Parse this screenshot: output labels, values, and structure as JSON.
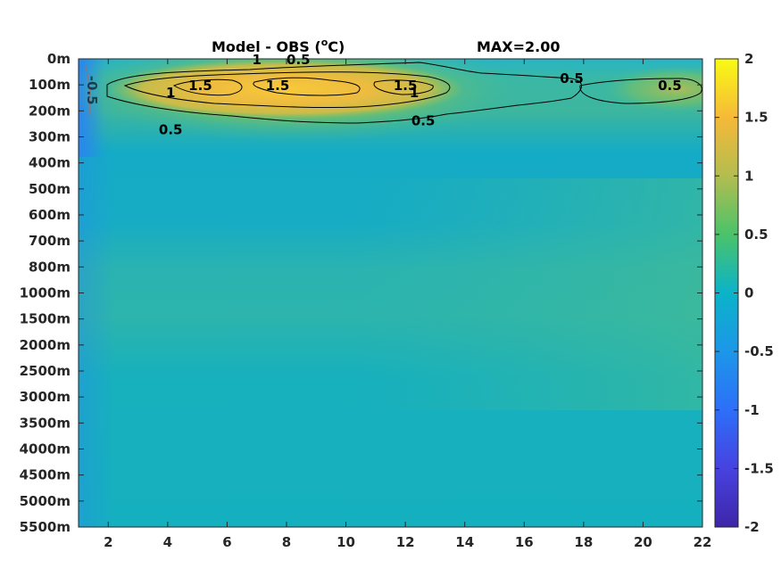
{
  "chart_data": {
    "type": "heatmap",
    "title": "Model - OBS (",
    "title_sup": "o",
    "title_unit": "C)",
    "subtitle": "MAX=2.00",
    "x_ticks": [
      "2",
      "4",
      "6",
      "8",
      "10",
      "12",
      "14",
      "16",
      "18",
      "20",
      "22"
    ],
    "x_tick_values": [
      2,
      4,
      6,
      8,
      10,
      12,
      14,
      16,
      18,
      20,
      22
    ],
    "xlim": [
      1,
      22
    ],
    "y_ticks": [
      "0m",
      "100m",
      "200m",
      "300m",
      "400m",
      "500m",
      "600m",
      "700m",
      "800m",
      "1000m",
      "1500m",
      "2000m",
      "2500m",
      "3000m",
      "3500m",
      "4000m",
      "4500m",
      "5000m",
      "5500m"
    ],
    "colorbar_ticks": [
      "2",
      "1.5",
      "1",
      "0.5",
      "0",
      "-0.5",
      "-1",
      "-1.5",
      "-2"
    ],
    "colorbar_values": [
      2,
      1.5,
      1,
      0.5,
      0,
      -0.5,
      -1,
      -1.5,
      -2
    ],
    "clim": [
      -2,
      2
    ],
    "colormap": "parula",
    "max_value": 2.0,
    "contour_levels": [
      0.5,
      1,
      1.5,
      -0.5
    ],
    "contour_labels": [
      {
        "text": "0.5",
        "x": 8.4,
        "y": "0m"
      },
      {
        "text": "1",
        "x": 7.0,
        "y": "0m"
      },
      {
        "text": "1.5",
        "x": 7.7,
        "y": "100m"
      },
      {
        "text": "1.5",
        "x": 5.1,
        "y": "100m"
      },
      {
        "text": "1",
        "x": 4.1,
        "y": "100m"
      },
      {
        "text": "0.5",
        "x": 4.1,
        "y": "200m"
      },
      {
        "text": "1.5",
        "x": 12.0,
        "y": "100m"
      },
      {
        "text": "1",
        "x": 12.3,
        "y": "100m"
      },
      {
        "text": "0.5",
        "x": 12.6,
        "y": "200m"
      },
      {
        "text": "0.5",
        "x": 17.6,
        "y": "100m"
      },
      {
        "text": "0.5",
        "x": 20.9,
        "y": "100m"
      },
      {
        "text": "-0.5",
        "x": 1.3,
        "y": "100m"
      }
    ],
    "field_depth_profile": [
      {
        "depth": "0m",
        "value": 0.3
      },
      {
        "depth": "100m",
        "value": 1.2
      },
      {
        "depth": "200m",
        "value": 0.6
      },
      {
        "depth": "300m",
        "value": 0.2
      },
      {
        "depth": "500m",
        "value": 0.05
      },
      {
        "depth": "800m",
        "value": 0.25
      },
      {
        "depth": "1500m",
        "value": 0.25
      },
      {
        "depth": "2500m",
        "value": 0.08
      },
      {
        "depth": "3500m",
        "value": 0.05
      },
      {
        "depth": "5500m",
        "value": 0.05
      }
    ]
  }
}
